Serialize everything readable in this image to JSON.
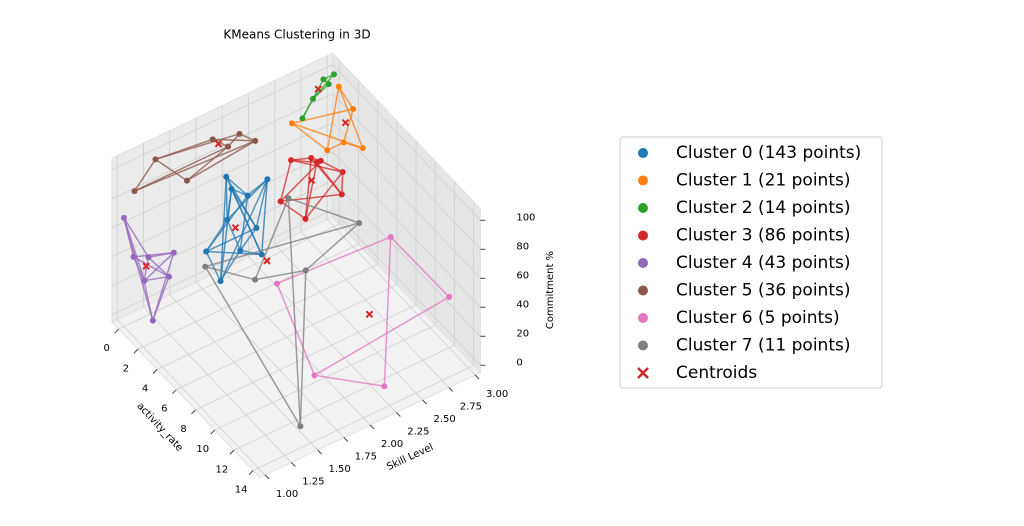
{
  "chart_data": {
    "type": "scatter3d",
    "title": "KMeans Clustering in 3D",
    "xlabel": "activity_rate",
    "ylabel": "Skill Level",
    "zlabel": "Commitment %",
    "xlim": [
      -0.7,
      14.7
    ],
    "ylim": [
      0.95,
      3.05
    ],
    "zlim": [
      -5,
      108
    ],
    "xticks": [
      0,
      2,
      4,
      6,
      8,
      10,
      12,
      14
    ],
    "yticks": [
      {
        "value": 1,
        "label": "1.00"
      },
      {
        "value": 1.25,
        "label": "1.25"
      },
      {
        "value": 1.5,
        "label": "1.50"
      },
      {
        "value": 1.75,
        "label": "1.75"
      },
      {
        "value": 2,
        "label": "2.00"
      },
      {
        "value": 2.25,
        "label": "2.25"
      },
      {
        "value": 2.5,
        "label": "2.50"
      },
      {
        "value": 2.75,
        "label": "2.75"
      },
      {
        "value": 3,
        "label": "3.00"
      }
    ],
    "zticks": [
      0,
      20,
      40,
      60,
      80,
      100
    ],
    "grid": true,
    "series": [
      {
        "name": "Cluster 0 (143 points)",
        "color": "#1f77b4",
        "x": [
          2,
          4.5,
          3,
          2.5,
          5,
          3.5,
          4,
          2,
          3,
          4.5
        ],
        "y": [
          1.6,
          1.9,
          1.75,
          1.95,
          1.65,
          1.6,
          2.0,
          1.8,
          1.7,
          1.85
        ],
        "z": [
          40,
          45,
          85,
          70,
          60,
          30,
          90,
          55,
          95,
          65
        ]
      },
      {
        "name": "Cluster 1 (21 points)",
        "color": "#ff7f0e",
        "x": [
          0,
          2,
          1,
          3,
          0.5,
          1.5
        ],
        "y": [
          2.6,
          3.0,
          3.0,
          3.0,
          3.0,
          2.8
        ],
        "z": [
          80,
          90,
          60,
          70,
          95,
          65
        ]
      },
      {
        "name": "Cluster 2 (14 points)",
        "color": "#2ca02c",
        "x": [
          0,
          0,
          0,
          0,
          0
        ],
        "y": [
          2.7,
          2.9,
          3.0,
          2.8,
          2.95
        ],
        "z": [
          80,
          100,
          100,
          90,
          95
        ]
      },
      {
        "name": "Cluster 3 (86 points)",
        "color": "#d62728",
        "x": [
          1,
          3,
          2,
          2.5,
          1.5,
          3,
          2,
          1
        ],
        "y": [
          2.4,
          2.8,
          2.6,
          2.5,
          2.7,
          2.6,
          2.9,
          2.5
        ],
        "z": [
          40,
          45,
          70,
          35,
          60,
          75,
          50,
          65
        ]
      },
      {
        "name": "Cluster 4 (43 points)",
        "color": "#9467bd",
        "x": [
          0,
          3,
          1,
          2,
          3,
          0.5,
          2.5,
          1
        ],
        "y": [
          1.0,
          1.0,
          1.1,
          1.05,
          1.2,
          1.15,
          1.2,
          1.0
        ],
        "z": [
          70,
          20,
          30,
          55,
          60,
          25,
          40,
          50
        ]
      },
      {
        "name": "Cluster 5 (36 points)",
        "color": "#8c564b",
        "x": [
          0,
          0,
          0,
          1,
          0,
          0,
          0.5
        ],
        "y": [
          1.1,
          1.3,
          1.6,
          1.9,
          2.1,
          2.25,
          1.8
        ],
        "z": [
          85,
          100,
          75,
          95,
          90,
          80,
          100
        ]
      },
      {
        "name": "Cluster 6 (5 points)",
        "color": "#e377c2",
        "x": [
          14,
          7,
          12,
          10,
          5
        ],
        "y": [
          2.2,
          2.9,
          3.0,
          1.9,
          2.0
        ],
        "z": [
          10,
          40,
          30,
          0,
          25
        ]
      },
      {
        "name": "Cluster 7 (11 points)",
        "color": "#7f7f7f",
        "x": [
          14,
          4,
          7,
          3,
          6,
          8
        ],
        "y": [
          1.4,
          2.2,
          2.6,
          1.5,
          1.7,
          2.0
        ],
        "z": [
          10,
          70,
          60,
          40,
          45,
          55
        ]
      }
    ],
    "centroids": {
      "name": "Centroids",
      "color": "#d62728",
      "x": [
        3.3,
        1.2,
        0,
        2.05,
        1.55,
        0,
        9.6,
        5.6
      ],
      "y": [
        1.76,
        3.0,
        2.85,
        2.6,
        1.07,
        1.9,
        2.46,
        1.85
      ],
      "z": [
        60,
        75,
        95,
        55,
        45,
        90,
        20,
        50
      ]
    }
  }
}
